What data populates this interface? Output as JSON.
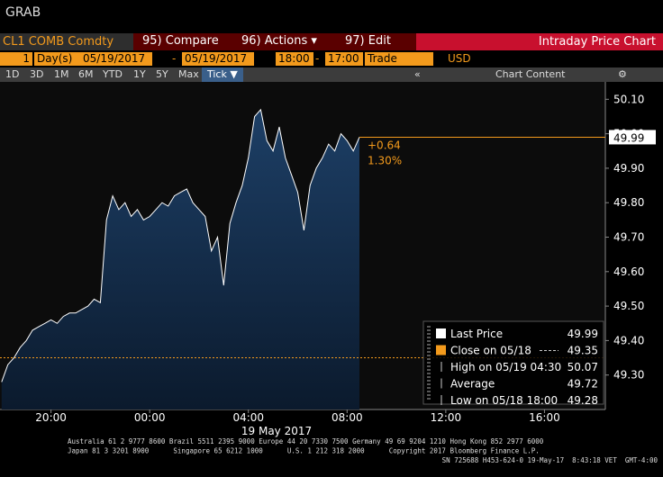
{
  "window": {
    "title": "GRAB"
  },
  "toolbar": {
    "ticker": "CL1 COMB Comdty",
    "compare": "95) Compare",
    "actions": "96) Actions ▾",
    "edit": "97) Edit",
    "chart_name": "Intraday Price Chart"
  },
  "settings": {
    "count": "1",
    "unit": "Day(s)",
    "start_date": "05/19/2017",
    "date_sep": "-",
    "end_date": "05/19/2017",
    "start_time": "18:00",
    "time_sep": "-",
    "end_time": "17:00",
    "field": "Trade",
    "currency": "USD"
  },
  "ranges": {
    "buttons": [
      "1D",
      "3D",
      "1M",
      "6M",
      "YTD",
      "1Y",
      "5Y",
      "Max",
      "Tick ▼"
    ],
    "collapse": "«",
    "content": "Chart Content",
    "gear": "⚙"
  },
  "chart_data": {
    "type": "area",
    "color": "#ffffff",
    "x": [
      "2017-05-18T18:00",
      "2017-05-18T18:15",
      "2017-05-18T18:30",
      "2017-05-18T18:45",
      "2017-05-18T19:00",
      "2017-05-18T19:15",
      "2017-05-18T19:30",
      "2017-05-18T19:45",
      "2017-05-18T20:00",
      "2017-05-18T20:15",
      "2017-05-18T20:30",
      "2017-05-18T20:45",
      "2017-05-18T21:00",
      "2017-05-18T21:15",
      "2017-05-18T21:30",
      "2017-05-18T21:45",
      "2017-05-18T22:00",
      "2017-05-18T22:15",
      "2017-05-18T22:30",
      "2017-05-18T22:45",
      "2017-05-18T23:00",
      "2017-05-18T23:15",
      "2017-05-18T23:30",
      "2017-05-18T23:45",
      "2017-05-19T00:00",
      "2017-05-19T00:15",
      "2017-05-19T00:30",
      "2017-05-19T00:45",
      "2017-05-19T01:00",
      "2017-05-19T01:15",
      "2017-05-19T01:30",
      "2017-05-19T01:45",
      "2017-05-19T02:00",
      "2017-05-19T02:15",
      "2017-05-19T02:30",
      "2017-05-19T02:45",
      "2017-05-19T03:00",
      "2017-05-19T03:15",
      "2017-05-19T03:30",
      "2017-05-19T03:45",
      "2017-05-19T04:00",
      "2017-05-19T04:15",
      "2017-05-19T04:30",
      "2017-05-19T04:45",
      "2017-05-19T05:00",
      "2017-05-19T05:15",
      "2017-05-19T05:30",
      "2017-05-19T05:45",
      "2017-05-19T06:00",
      "2017-05-19T06:15",
      "2017-05-19T06:30",
      "2017-05-19T06:45",
      "2017-05-19T07:00",
      "2017-05-19T07:15",
      "2017-05-19T07:30",
      "2017-05-19T07:45",
      "2017-05-19T08:00",
      "2017-05-19T08:15",
      "2017-05-19T08:30"
    ],
    "values": [
      49.28,
      49.33,
      49.35,
      49.38,
      49.4,
      49.43,
      49.44,
      49.45,
      49.46,
      49.45,
      49.47,
      49.48,
      49.48,
      49.49,
      49.5,
      49.52,
      49.51,
      49.75,
      49.82,
      49.78,
      49.8,
      49.76,
      49.78,
      49.75,
      49.76,
      49.78,
      49.8,
      49.79,
      49.82,
      49.83,
      49.84,
      49.8,
      49.78,
      49.76,
      49.66,
      49.7,
      49.56,
      49.74,
      49.8,
      49.85,
      49.93,
      50.05,
      50.07,
      49.98,
      49.95,
      50.02,
      49.93,
      49.88,
      49.83,
      49.72,
      49.85,
      49.9,
      49.93,
      49.97,
      49.95,
      50.0,
      49.98,
      49.95,
      49.99
    ],
    "xlim": [
      "2017-05-18T17:56",
      "2017-05-19T18:28"
    ],
    "xticks": [
      {
        "value": "2017-05-18T20:00",
        "label": "20:00"
      },
      {
        "value": "2017-05-19T00:00",
        "label": "00:00"
      },
      {
        "value": "2017-05-19T04:00",
        "label": "04:00"
      },
      {
        "value": "2017-05-19T08:00",
        "label": "08:00"
      },
      {
        "value": "2017-05-19T12:00",
        "label": "12:00"
      },
      {
        "value": "2017-05-19T16:00",
        "label": "16:00"
      }
    ],
    "xlabel": "19 May 2017",
    "ylim": [
      49.2,
      50.14
    ],
    "yticks": [
      {
        "value": 49.3,
        "label": "49.30"
      },
      {
        "value": 49.4,
        "label": "49.40"
      },
      {
        "value": 49.5,
        "label": "49.50"
      },
      {
        "value": 49.6,
        "label": "49.60"
      },
      {
        "value": 49.7,
        "label": "49.70"
      },
      {
        "value": 49.8,
        "label": "49.80"
      },
      {
        "value": 49.9,
        "label": "49.90"
      },
      {
        "value": 50.0,
        "label": "50.00"
      },
      {
        "value": 50.1,
        "label": "50.10"
      }
    ],
    "annotations": {
      "change": "+0.64",
      "change_pct": "1.30%"
    },
    "legend": [
      {
        "name": "Last Price",
        "value": 49.99
      },
      {
        "name": "Close on 05/18",
        "value": 49.35
      },
      {
        "name": "High on 05/19 04:30",
        "value": 50.07
      },
      {
        "name": "Average",
        "value": 49.72
      },
      {
        "name": "Low on 05/18 18:00",
        "value": 49.28
      }
    ]
  },
  "footer": {
    "line1": "Australia 61 2 9777 8600 Brazil 5511 2395 9000 Europe 44 20 7330 7500 Germany 49 69 9204 1210 Hong Kong 852 2977 6000",
    "line2": "Japan 81 3 3201 8900      Singapore 65 6212 1000      U.S. 1 212 318 2000      Copyright 2017 Bloomberg Finance L.P.",
    "line3": "SN 725688 H453-624-0 19-May-17  8:43:18 VET  GMT-4:00"
  }
}
